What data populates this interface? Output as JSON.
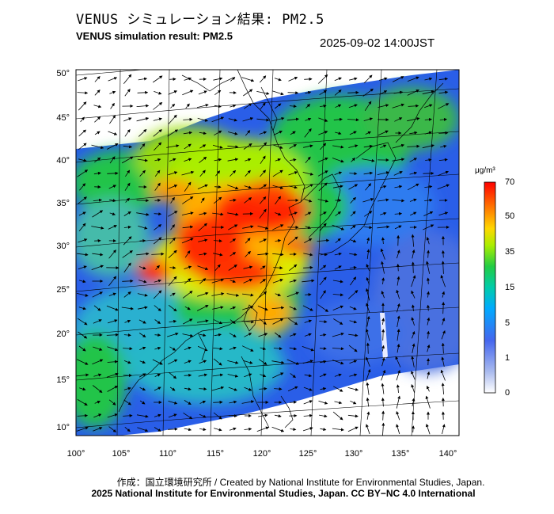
{
  "title_ja": "VENUS シミュレーション結果: PM2.5",
  "title_en": "VENUS simulation result: PM2.5",
  "datetime": "2025-09-02 14:00JST",
  "map": {
    "lon_ticks": [
      "100°",
      "105°",
      "110°",
      "115°",
      "120°",
      "125°",
      "130°",
      "135°",
      "140°"
    ],
    "lat_ticks": [
      "50°",
      "45°",
      "40°",
      "35°",
      "30°",
      "25°",
      "20°",
      "15°",
      "10°"
    ],
    "region": "East Asia"
  },
  "colorbar": {
    "unit": "μg/m³",
    "tick_labels": [
      "70",
      "50",
      "35",
      "15",
      "5",
      "1",
      "0"
    ],
    "colors": [
      "#ff0000",
      "#ff7700",
      "#ffd700",
      "#aaee00",
      "#22cc44",
      "#00ccaa",
      "#00aaff",
      "#2255ee",
      "#6677dd",
      "#aabbee",
      "#ffffff"
    ]
  },
  "credit_line1": "作成：国立環境研究所 / Created by National Institute for Environmental Studies, Japan.",
  "credit_line2": "2025 National Institute for Environmental Studies, Japan. CC BY−NC 4.0 International"
}
